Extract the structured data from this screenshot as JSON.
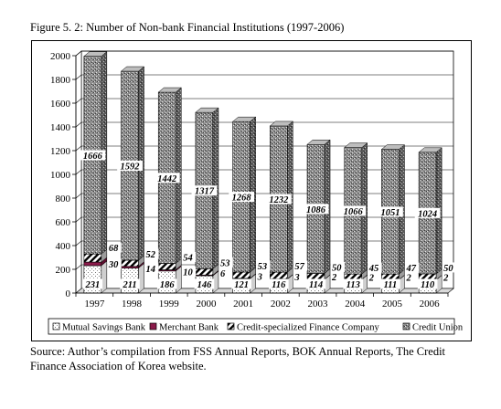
{
  "figure": {
    "title": "Figure 5. 2: Number of Non-bank Financial Institutions (1997-2006)",
    "source": "Source: Author’s compilation from FSS Annual Reports, BOK Annual Reports, The Credit Finance Association of Korea website."
  },
  "chart_data": {
    "type": "bar",
    "stacked": true,
    "three_d": true,
    "categories": [
      "1997",
      "1998",
      "1999",
      "2000",
      "2001",
      "2002",
      "2003",
      "2004",
      "2005",
      "2006"
    ],
    "ylim": [
      0,
      2000
    ],
    "yticks": [
      0,
      200,
      400,
      600,
      800,
      1000,
      1200,
      1400,
      1600,
      1800,
      2000
    ],
    "grid": true,
    "legend_position": "bottom",
    "series": [
      {
        "name": "Mutual Savings Bank",
        "values": [
          231,
          211,
          186,
          146,
          121,
          116,
          114,
          113,
          111,
          110
        ],
        "labels": [
          "231",
          "211",
          "186",
          "146",
          "121",
          "116",
          "114",
          "113",
          "111",
          "110"
        ],
        "color": "#ffffff",
        "pattern": "dots"
      },
      {
        "name": "Merchant Bank",
        "values": [
          30,
          14,
          10,
          6,
          3,
          3,
          2,
          2,
          2,
          2
        ],
        "labels": [
          "30",
          "14",
          "10",
          "6",
          "3",
          "3",
          "2",
          "2",
          "2",
          "2"
        ],
        "color": "#8b1a4a",
        "pattern": "solid"
      },
      {
        "name": "Credit-specialized Finance Company",
        "values": [
          68,
          52,
          54,
          53,
          53,
          57,
          50,
          45,
          47,
          50
        ],
        "labels": [
          "68",
          "52",
          "54",
          "53",
          "53",
          "57",
          "50",
          "45",
          "47",
          "50"
        ],
        "color": "#ffffff",
        "pattern": "diagonal-stripes"
      },
      {
        "name": "Credit Union",
        "values": [
          1666,
          1592,
          1442,
          1317,
          1268,
          1232,
          1086,
          1066,
          1051,
          1024
        ],
        "labels": [
          "1666",
          "1592",
          "1442",
          "1317",
          "1268",
          "1232",
          "1086",
          "1066",
          "1051",
          "1024"
        ],
        "color": "#9a9a9a",
        "pattern": "speckled"
      }
    ]
  }
}
